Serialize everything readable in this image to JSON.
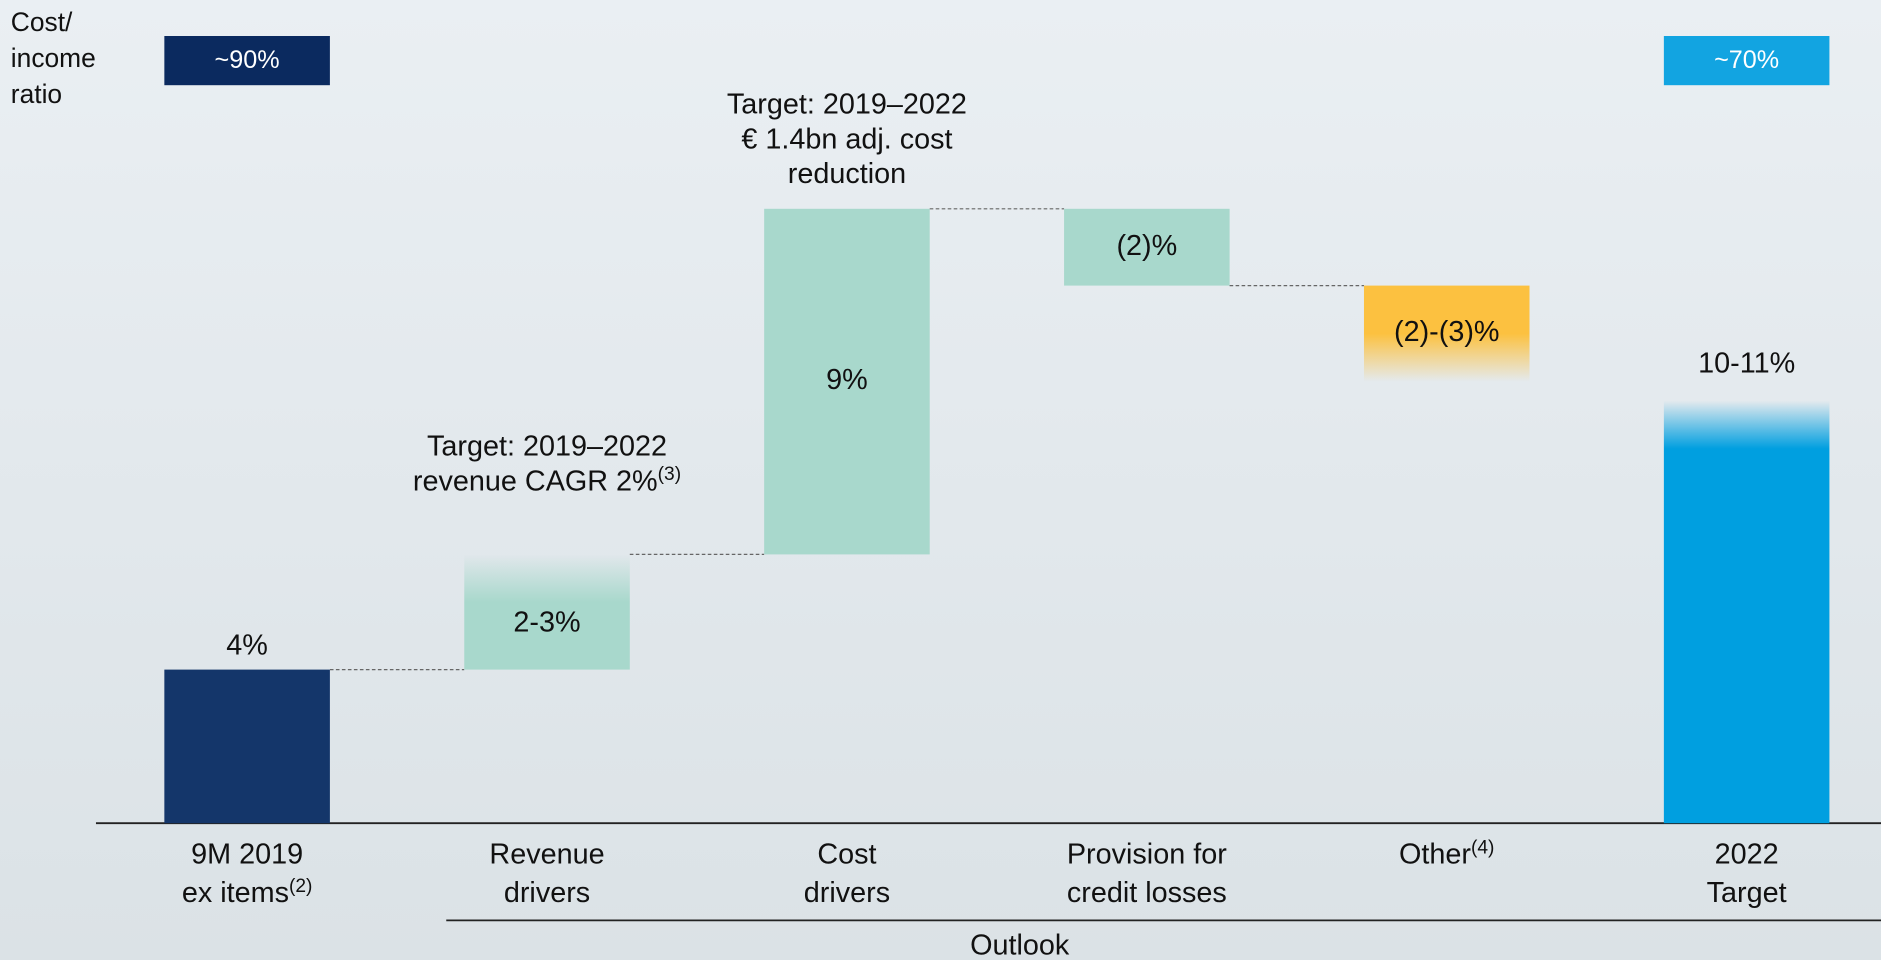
{
  "chart_data": {
    "type": "waterfall",
    "ratio_label": [
      "Cost/",
      "income",
      "ratio"
    ],
    "ratio_boxes": [
      {
        "label": "~90%",
        "color": "#0b2a5f"
      },
      {
        "label": "~70%",
        "color": "#12a4e1"
      }
    ],
    "categories": [
      [
        "9M 2019",
        "ex items"
      ],
      [
        "Revenue",
        "drivers"
      ],
      [
        "Cost",
        "drivers"
      ],
      [
        "Provision for",
        "credit losses"
      ],
      [
        "Other"
      ],
      [
        "2022",
        "Target"
      ]
    ],
    "category_notes": [
      "(2)",
      null,
      null,
      null,
      "(4)",
      null
    ],
    "measure": [
      "absolute",
      "relative",
      "relative",
      "relative",
      "relative",
      "absolute"
    ],
    "values": [
      4,
      3,
      9,
      -2,
      -2.5,
      11
    ],
    "value_labels": [
      "4%",
      "2-3%",
      "9%",
      "(2)%",
      "(2)-(3)%",
      "10-11%"
    ],
    "colors": [
      "#14366a",
      "#a8d8cc",
      "#a8d8cc",
      "#a8d8cc",
      "#fcc140",
      "#009fe0"
    ],
    "fade": [
      "none",
      "top",
      "none",
      "none",
      "bottom",
      "top"
    ],
    "annotations": [
      {
        "lines": [
          "Target: 2019–2022",
          "revenue CAGR 2%"
        ],
        "note": "(3)",
        "category": 1
      },
      {
        "lines": [
          "Target: 2019–2022",
          "€ 1.4bn adj. cost",
          "reduction"
        ],
        "category": 2
      }
    ],
    "group_label": "Outlook"
  }
}
